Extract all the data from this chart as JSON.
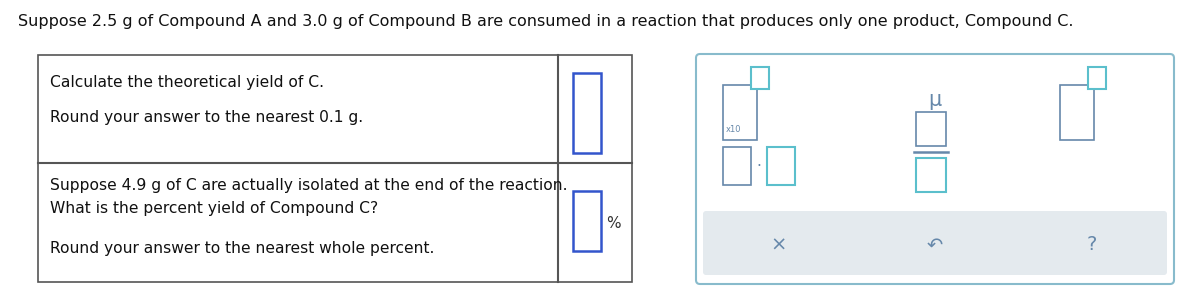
{
  "title_text": "Suppose 2.5 g of Compound A and 3.0 g of Compound B are consumed in a reaction that produces only one product, Compound C.",
  "bg_color": "#ffffff",
  "table_border_color": "#555555",
  "teal_color": "#5bbfcc",
  "gray_color": "#6688aa",
  "blue_box_color": "#3355cc",
  "light_gray_bg": "#e4eaee",
  "panel_border": "#88bbcc",
  "row1_text_line1": "Calculate the theoretical yield of C.",
  "row1_text_line2": "Round your answer to the nearest 0.1 g.",
  "row2_text_line1": "Suppose 4.9 g of C are actually isolated at the end of the reaction.",
  "row2_text_line2": "What is the percent yield of Compound C?",
  "row2_text_line3": "Round your answer to the nearest whole percent."
}
